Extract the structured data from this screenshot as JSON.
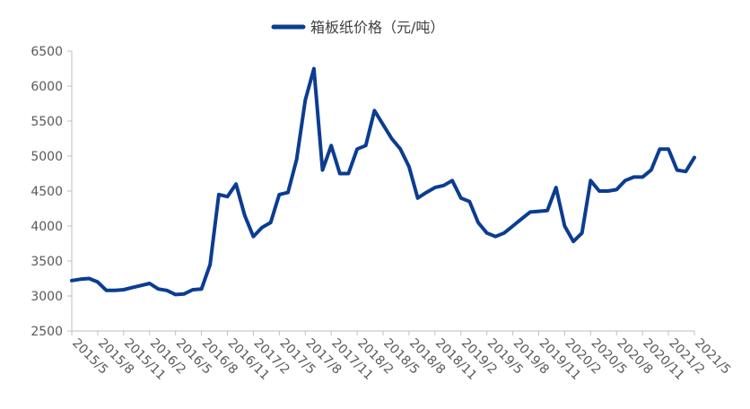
{
  "chart_data": {
    "type": "line",
    "title": "",
    "xlabel": "",
    "ylabel": "",
    "legend_position": "top-center",
    "grid": false,
    "ylim": [
      2500,
      6500
    ],
    "yticks": [
      2500,
      3000,
      3500,
      4000,
      4500,
      5000,
      5500,
      6000,
      6500
    ],
    "xlim": [
      "2015-05",
      "2021-05"
    ],
    "x_tick_labels": [
      "2015/5",
      "2015/8",
      "2015/11",
      "2016/2",
      "2016/5",
      "2016/8",
      "2016/11",
      "2017/2",
      "2017/5",
      "2017/8",
      "2017/11",
      "2018/2",
      "2018/5",
      "2018/8",
      "2018/11",
      "2019/2",
      "2019/5",
      "2019/8",
      "2019/11",
      "2020/2",
      "2020/5",
      "2020/8",
      "2020/11",
      "2021/2",
      "2021/5"
    ],
    "series": [
      {
        "name": "箱板纸价格（元/吨）",
        "color": "#0b3d91",
        "x": [
          "2015-05",
          "2015-06",
          "2015-07",
          "2015-08",
          "2015-09",
          "2015-10",
          "2015-11",
          "2015-12",
          "2016-01",
          "2016-02",
          "2016-03",
          "2016-04",
          "2016-05",
          "2016-06",
          "2016-07",
          "2016-08",
          "2016-09",
          "2016-10",
          "2016-11",
          "2016-12",
          "2017-01",
          "2017-02",
          "2017-03",
          "2017-04",
          "2017-05",
          "2017-06",
          "2017-07",
          "2017-08",
          "2017-09",
          "2017-10",
          "2017-11",
          "2017-12",
          "2018-01",
          "2018-02",
          "2018-03",
          "2018-04",
          "2018-05",
          "2018-06",
          "2018-07",
          "2018-08",
          "2018-09",
          "2018-10",
          "2018-11",
          "2018-12",
          "2019-01",
          "2019-02",
          "2019-03",
          "2019-04",
          "2019-05",
          "2019-06",
          "2019-07",
          "2019-08",
          "2019-09",
          "2019-10",
          "2019-11",
          "2019-12",
          "2020-01",
          "2020-02",
          "2020-03",
          "2020-04",
          "2020-05",
          "2020-06",
          "2020-07",
          "2020-08",
          "2020-09",
          "2020-10",
          "2020-11",
          "2020-12",
          "2021-01",
          "2021-02",
          "2021-03",
          "2021-04",
          "2021-05"
        ],
        "values": [
          3220,
          3240,
          3250,
          3200,
          3080,
          3080,
          3090,
          3120,
          3150,
          3180,
          3100,
          3080,
          3020,
          3030,
          3090,
          3100,
          3450,
          4450,
          4420,
          4600,
          4150,
          3850,
          3980,
          4050,
          4450,
          4480,
          4950,
          5800,
          6250,
          4800,
          5150,
          4750,
          4750,
          5100,
          5150,
          5650,
          5450,
          5250,
          5100,
          4850,
          4400,
          4480,
          4550,
          4580,
          4650,
          4400,
          4350,
          4050,
          3900,
          3850,
          3900,
          4000,
          4100,
          4200,
          4210,
          4220,
          4550,
          4000,
          3780,
          3900,
          4650,
          4500,
          4500,
          4520,
          4650,
          4700,
          4700,
          4800,
          5100,
          5100,
          4800,
          4780,
          4980
        ]
      }
    ]
  }
}
